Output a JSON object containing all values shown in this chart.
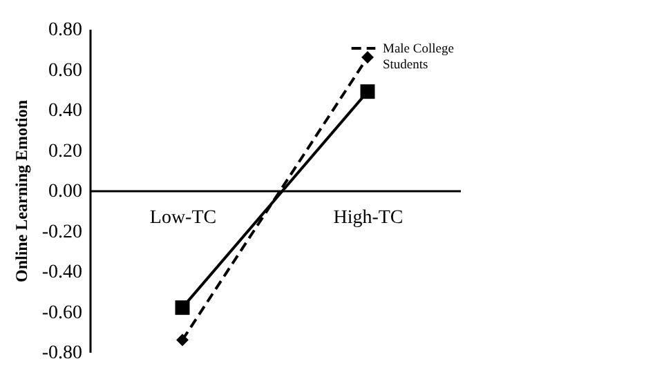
{
  "chart_data": {
    "type": "line",
    "ylabel": "Online Learning Emotion",
    "categories": [
      "Low-TC",
      "High-TC"
    ],
    "series": [
      {
        "color": "#000000",
        "values": [
          -0.58,
          0.49
        ],
        "marker": "square",
        "line_style": "solid"
      },
      {
        "name": "Male College Students",
        "color": "#000000",
        "values": [
          -0.74,
          0.66
        ],
        "marker": "diamond",
        "line_style": "dashed"
      }
    ],
    "ylim": [
      -0.8,
      0.8
    ],
    "yticks": [
      {
        "value": -0.8,
        "label": "-0.80"
      },
      {
        "value": -0.6,
        "label": "-0.60"
      },
      {
        "value": -0.4,
        "label": "-0.40"
      },
      {
        "value": -0.2,
        "label": "-0.20"
      },
      {
        "value": 0,
        "label": "0.00"
      },
      {
        "value": 0.2,
        "label": "0.20"
      },
      {
        "value": 0.4,
        "label": "0.40"
      },
      {
        "value": 0.6,
        "label": "0.60"
      },
      {
        "value": 0.8,
        "label": "0.80"
      }
    ],
    "grid": false,
    "legend": "top right"
  }
}
